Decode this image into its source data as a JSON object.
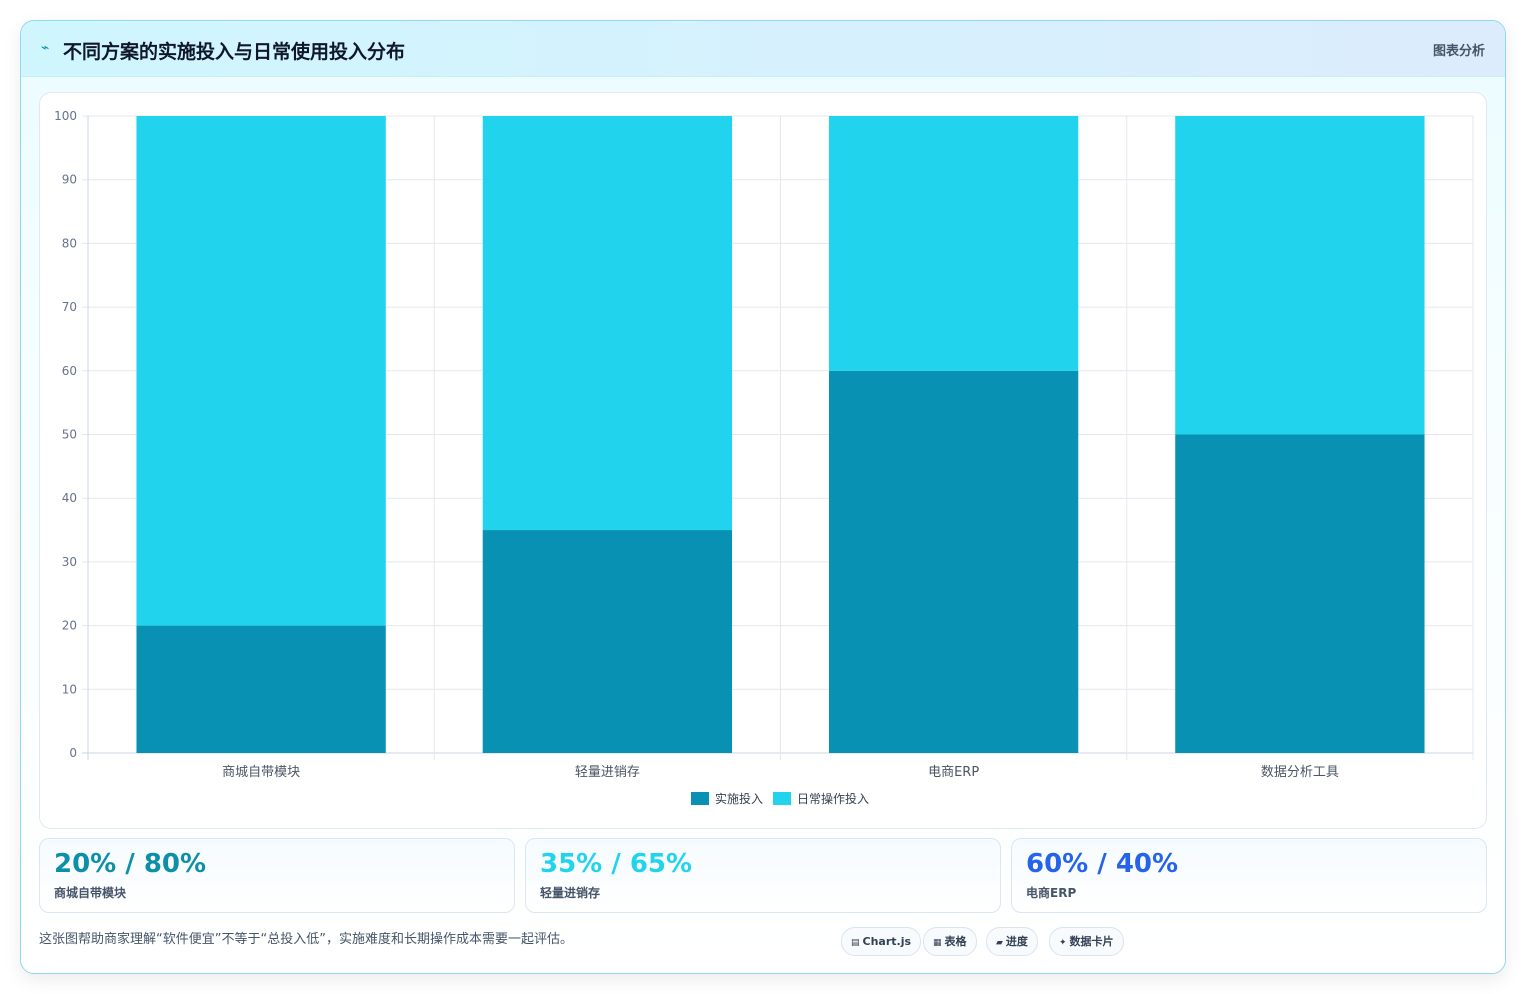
{
  "header": {
    "icon": "sparkline-icon",
    "title": "不同方案的实施投入与日常使用投入分布",
    "tag": "图表分析"
  },
  "chart_data": {
    "type": "bar",
    "stacked": true,
    "categories": [
      "商城自带模块",
      "轻量进销存",
      "电商ERP",
      "数据分析工具"
    ],
    "series": [
      {
        "name": "实施投入",
        "values": [
          20,
          35,
          60,
          50
        ],
        "color": "#0891b2"
      },
      {
        "name": "日常操作投入",
        "values": [
          80,
          65,
          40,
          50
        ],
        "color": "#22d3ee"
      }
    ],
    "ylim": [
      0,
      100
    ],
    "yticks": [
      0,
      10,
      20,
      30,
      40,
      50,
      60,
      70,
      80,
      90,
      100
    ],
    "grid": true,
    "legend": "bottom"
  },
  "stats": [
    {
      "value": "20% / 80%",
      "label": "商城自带模块",
      "color": "#0e8fa8"
    },
    {
      "value": "35% / 65%",
      "label": "轻量进销存",
      "color": "#22d3ee"
    },
    {
      "value": "60% / 40%",
      "label": "电商ERP",
      "color": "#2563eb"
    }
  ],
  "note": "这张图帮助商家理解“软件便宜”不等于“总投入低”，实施难度和长期操作成本需要一起评估。",
  "pills": [
    {
      "icon": "chart-icon",
      "glyph": "▤",
      "label": "Chart.js"
    },
    {
      "icon": "table-icon",
      "glyph": "▦",
      "label": "表格"
    },
    {
      "icon": "progress-icon",
      "glyph": "▰",
      "label": "进度"
    },
    {
      "icon": "card-icon",
      "glyph": "✦",
      "label": "数据卡片"
    }
  ]
}
